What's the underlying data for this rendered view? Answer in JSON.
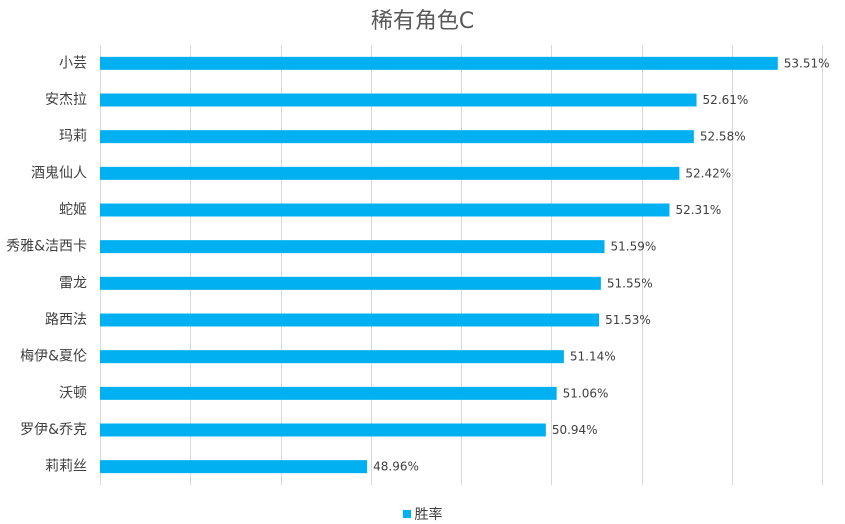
{
  "chart_data": {
    "type": "bar",
    "orientation": "horizontal",
    "title": "稀有角色C",
    "categories": [
      "小芸",
      "安杰拉",
      "玛莉",
      "酒鬼仙人",
      "蛇姬",
      "秀雅&洁西卡",
      "雷龙",
      "路西法",
      "梅伊&夏伦",
      "沃顿",
      "罗伊&乔克",
      "莉莉丝"
    ],
    "series": [
      {
        "name": "胜率",
        "values": [
          53.51,
          52.61,
          52.58,
          52.42,
          52.31,
          51.59,
          51.55,
          51.53,
          51.14,
          51.06,
          50.94,
          48.96
        ],
        "labels": [
          "53.51%",
          "52.61%",
          "52.58%",
          "52.42%",
          "52.31%",
          "51.59%",
          "51.55%",
          "51.53%",
          "51.14%",
          "51.06%",
          "50.94%",
          "48.96%"
        ]
      }
    ],
    "xlim": [
      46,
      54
    ],
    "grid": true,
    "legend": "bottom",
    "bar_color": "#00B0F0",
    "grid_color": "#D9D9D9"
  }
}
